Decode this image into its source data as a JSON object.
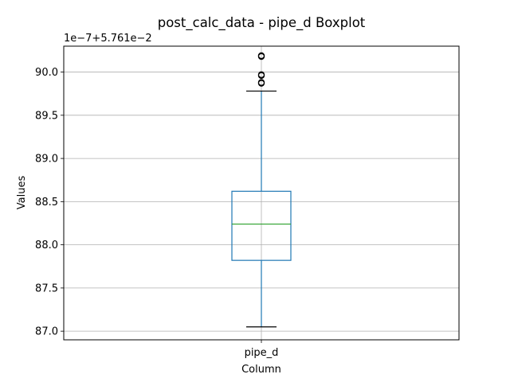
{
  "chart_data": {
    "type": "box",
    "title": "post_calc_data - pipe_d Boxplot",
    "xlabel": "Column",
    "ylabel": "Values",
    "offset_label": "1e−7+5.761e−2",
    "categories": [
      "pipe_d"
    ],
    "ylim": [
      86.9,
      90.3
    ],
    "yticks": [
      87.0,
      87.5,
      88.0,
      88.5,
      89.0,
      89.5,
      90.0
    ],
    "ytick_labels": [
      "87.0",
      "87.5",
      "88.0",
      "88.5",
      "89.0",
      "89.5",
      "90.0"
    ],
    "grid": true,
    "boxes": [
      {
        "category": "pipe_d",
        "whisker_low": 87.05,
        "q1": 87.82,
        "median": 88.24,
        "q3": 88.62,
        "whisker_high": 89.78,
        "outliers": [
          89.87,
          89.88,
          89.96,
          89.97,
          90.18,
          90.19
        ]
      }
    ],
    "colors": {
      "box": "#1f77b4",
      "median": "#2ca02c",
      "whisker": "#1f77b4",
      "cap": "#000000",
      "grid": "#b0b0b0",
      "axis": "#000000"
    }
  }
}
